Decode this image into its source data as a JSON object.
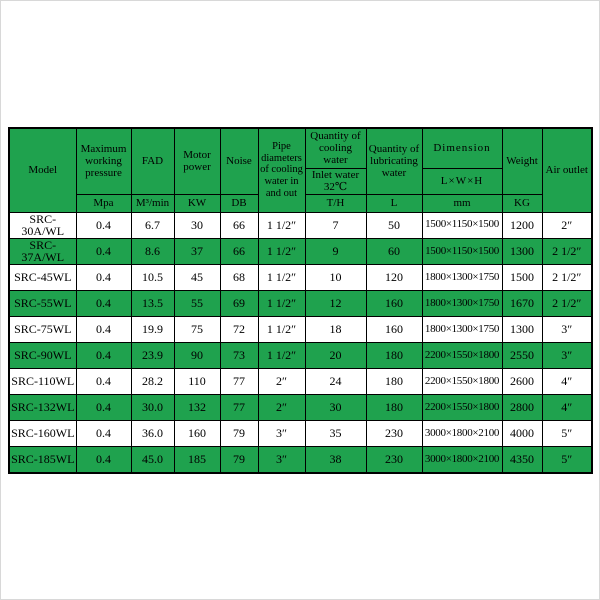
{
  "colors": {
    "green": "#1fa24e",
    "row_white": "#ffffff",
    "border": "#000000",
    "text": "#000000"
  },
  "table": {
    "header": {
      "model": "Model",
      "max_pressure": "Maximum working pressure",
      "fad": "FAD",
      "motor_power": "Motor power",
      "noise": "Noise",
      "pipe": "Pipe diameters of cooling water in and out",
      "cooling_qty": "Quantity of cooling water",
      "cooling_sub": "Inlet water 32℃",
      "lubricating_qty": "Quantity of lubricating water",
      "dimension": "Dimension",
      "dimension_sub": "L×W×H",
      "weight": "Weight",
      "air_outlet": "Air outlet",
      "units": {
        "pressure": "Mpa",
        "fad": "M³/min",
        "power": "KW",
        "noise": "DB",
        "cooling": "T/H",
        "lubricating": "L",
        "dimension": "mm",
        "weight": "KG"
      }
    },
    "rows": [
      {
        "model": "SRC-30A/WL",
        "pressure": "0.4",
        "fad": "6.7",
        "power": "30",
        "noise": "66",
        "pipe": "1 1/2″",
        "cooling": "7",
        "lubricating": "50",
        "dimension": "1500×1150×1500",
        "weight": "1200",
        "air_outlet": "2″",
        "highlight": false
      },
      {
        "model": "SRC-37A/WL",
        "pressure": "0.4",
        "fad": "8.6",
        "power": "37",
        "noise": "66",
        "pipe": "1 1/2″",
        "cooling": "9",
        "lubricating": "60",
        "dimension": "1500×1150×1500",
        "weight": "1300",
        "air_outlet": "2 1/2″",
        "highlight": true
      },
      {
        "model": "SRC-45WL",
        "pressure": "0.4",
        "fad": "10.5",
        "power": "45",
        "noise": "68",
        "pipe": "1 1/2″",
        "cooling": "10",
        "lubricating": "120",
        "dimension": "1800×1300×1750",
        "weight": "1500",
        "air_outlet": "2 1/2″",
        "highlight": false
      },
      {
        "model": "SRC-55WL",
        "pressure": "0.4",
        "fad": "13.5",
        "power": "55",
        "noise": "69",
        "pipe": "1 1/2″",
        "cooling": "12",
        "lubricating": "160",
        "dimension": "1800×1300×1750",
        "weight": "1670",
        "air_outlet": "2 1/2″",
        "highlight": true
      },
      {
        "model": "SRC-75WL",
        "pressure": "0.4",
        "fad": "19.9",
        "power": "75",
        "noise": "72",
        "pipe": "1 1/2″",
        "cooling": "18",
        "lubricating": "160",
        "dimension": "1800×1300×1750",
        "weight": "1300",
        "air_outlet": "3″",
        "highlight": false
      },
      {
        "model": "SRC-90WL",
        "pressure": "0.4",
        "fad": "23.9",
        "power": "90",
        "noise": "73",
        "pipe": "1 1/2″",
        "cooling": "20",
        "lubricating": "180",
        "dimension": "2200×1550×1800",
        "weight": "2550",
        "air_outlet": "3″",
        "highlight": true
      },
      {
        "model": "SRC-110WL",
        "pressure": "0.4",
        "fad": "28.2",
        "power": "110",
        "noise": "77",
        "pipe": "2″",
        "cooling": "24",
        "lubricating": "180",
        "dimension": "2200×1550×1800",
        "weight": "2600",
        "air_outlet": "4″",
        "highlight": false
      },
      {
        "model": "SRC-132WL",
        "pressure": "0.4",
        "fad": "30.0",
        "power": "132",
        "noise": "77",
        "pipe": "2″",
        "cooling": "30",
        "lubricating": "180",
        "dimension": "2200×1550×1800",
        "weight": "2800",
        "air_outlet": "4″",
        "highlight": true
      },
      {
        "model": "SRC-160WL",
        "pressure": "0.4",
        "fad": "36.0",
        "power": "160",
        "noise": "79",
        "pipe": "3″",
        "cooling": "35",
        "lubricating": "230",
        "dimension": "3000×1800×2100",
        "weight": "4000",
        "air_outlet": "5″",
        "highlight": false
      },
      {
        "model": "SRC-185WL",
        "pressure": "0.4",
        "fad": "45.0",
        "power": "185",
        "noise": "79",
        "pipe": "3″",
        "cooling": "38",
        "lubricating": "230",
        "dimension": "3000×1800×2100",
        "weight": "4350",
        "air_outlet": "5″",
        "highlight": true
      }
    ]
  }
}
